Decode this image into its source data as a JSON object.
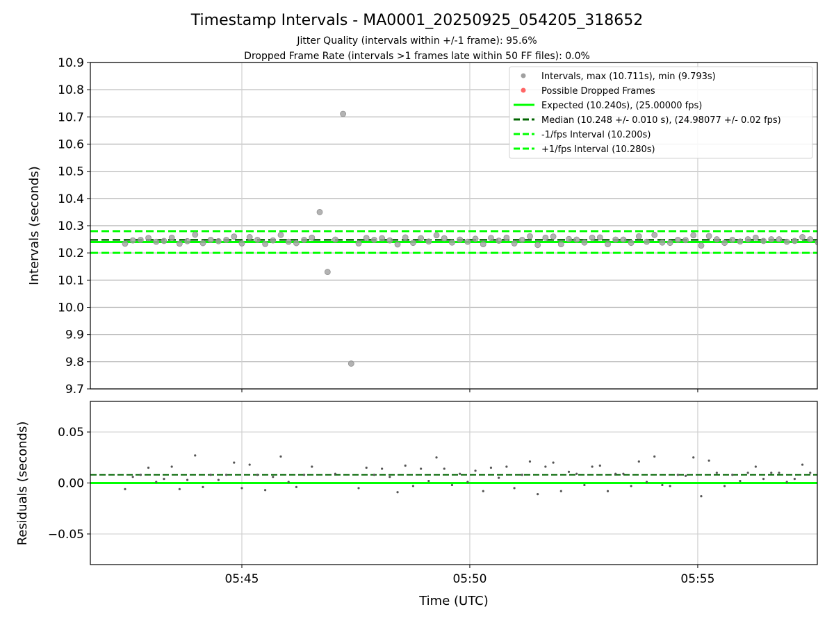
{
  "chart_data": [
    {
      "type": "scatter",
      "title": "Timestamp Intervals - MA0001_20250925_054205_318652",
      "subtitle_lines": [
        "Jitter Quality (intervals within +/-1 frame): 95.6%",
        "Dropped Frame Rate (intervals >1 frames late within 50 FF files): 0.0%"
      ],
      "xlabel": "Time (UTC)",
      "ylabel": "Intervals (seconds)",
      "ylim": [
        9.7,
        10.9
      ],
      "yticks": [
        "9.7",
        "9.8",
        "9.9",
        "10.0",
        "10.1",
        "10.2",
        "10.3",
        "10.4",
        "10.5",
        "10.6",
        "10.7",
        "10.8",
        "10.9"
      ],
      "x_range_seconds_from_0545": [
        -199.4,
        757.4
      ],
      "xticks": [
        {
          "label": "05:45",
          "sec": 0
        },
        {
          "label": "05:50",
          "sec": 300
        },
        {
          "label": "05:55",
          "sec": 600
        }
      ],
      "first_point_seconds_from_0545": -153.7,
      "grid": true,
      "legend_position": "top-right",
      "legend": [
        "Intervals, max (10.711s), min (9.793s)",
        "Possible Dropped Frames",
        "Expected (10.240s), (25.00000 fps)",
        "Median (10.248 +/- 0.010 s), (24.98077 +/- 0.02 fps)",
        "-1/fps Interval (10.200s)",
        "+1/fps Interval (10.280s)"
      ],
      "lines": {
        "expected": 10.24,
        "median": 10.248,
        "minus_1fps": 10.2,
        "plus_1fps": 10.28
      },
      "intervals": [
        10.234,
        10.246,
        10.248,
        10.255,
        10.241,
        10.244,
        10.256,
        10.234,
        10.243,
        10.267,
        10.236,
        10.248,
        10.243,
        10.248,
        10.26,
        10.235,
        10.258,
        10.248,
        10.233,
        10.246,
        10.266,
        10.241,
        10.236,
        10.248,
        10.256,
        10.35,
        10.13,
        10.249,
        10.711,
        9.793,
        10.235,
        10.255,
        10.248,
        10.254,
        10.246,
        10.231,
        10.257,
        10.237,
        10.254,
        10.242,
        10.265,
        10.254,
        10.238,
        10.249,
        10.241,
        10.252,
        10.232,
        10.255,
        10.245,
        10.256,
        10.235,
        10.248,
        10.261,
        10.229,
        10.256,
        10.26,
        10.232,
        10.251,
        10.249,
        10.238,
        10.256,
        10.257,
        10.232,
        10.249,
        10.249,
        10.237,
        10.261,
        10.241,
        10.266,
        10.238,
        10.237,
        10.248,
        10.247,
        10.265,
        10.227,
        10.262,
        10.25,
        10.237,
        10.248,
        10.242,
        10.25,
        10.256,
        10.244,
        10.25,
        10.25,
        10.241,
        10.244,
        10.258,
        10.25,
        10.238
      ]
    },
    {
      "type": "scatter",
      "ylabel": "Residuals (seconds)",
      "ylim": [
        -0.08,
        0.08
      ],
      "yticks": [
        {
          "label": "−0.05",
          "v": -0.05
        },
        {
          "label": "0.00",
          "v": 0
        },
        {
          "label": "0.05",
          "v": 0.05
        }
      ],
      "reference": 10.24,
      "median_residual": 0.008
    }
  ],
  "colors": {
    "expected": "#00ff00",
    "median": "#006400",
    "bounds": "#00ff00",
    "points": "#a0a0a0",
    "dropped": "#ff4040",
    "residual_points": "#555555",
    "grid": "#b0b0b0"
  }
}
